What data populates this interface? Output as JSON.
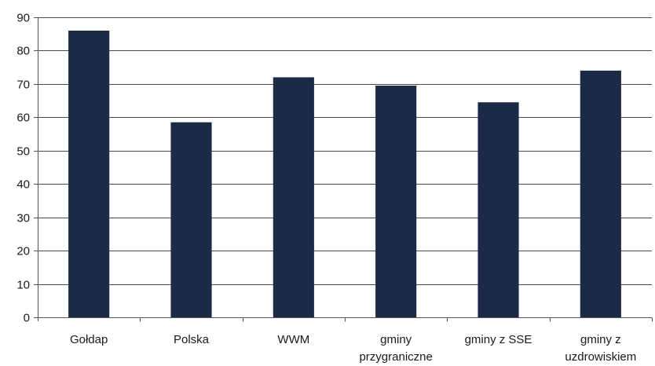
{
  "chart_data": {
    "type": "bar",
    "categories": [
      "Gołdap",
      "Polska",
      "WWM",
      "gminy przygraniczne",
      "gminy z SSE",
      "gminy z uzdrowiskiem"
    ],
    "category_lines": [
      [
        "Gołdap"
      ],
      [
        "Polska"
      ],
      [
        "WWM"
      ],
      [
        "gminy",
        "przygraniczne"
      ],
      [
        "gminy z SSE"
      ],
      [
        "gminy z",
        "uzdrowiskiem"
      ]
    ],
    "values": [
      86,
      58.5,
      72,
      69.5,
      64.5,
      74
    ],
    "title": "",
    "xlabel": "",
    "ylabel": "",
    "ylim": [
      0,
      90
    ],
    "yticks": [
      0,
      10,
      20,
      30,
      40,
      50,
      60,
      70,
      80,
      90
    ],
    "grid": true,
    "legend": "none",
    "colors": {
      "bar": "#1b2a47",
      "grid": "#4a4a4a",
      "text": "#1a1a1a"
    }
  }
}
